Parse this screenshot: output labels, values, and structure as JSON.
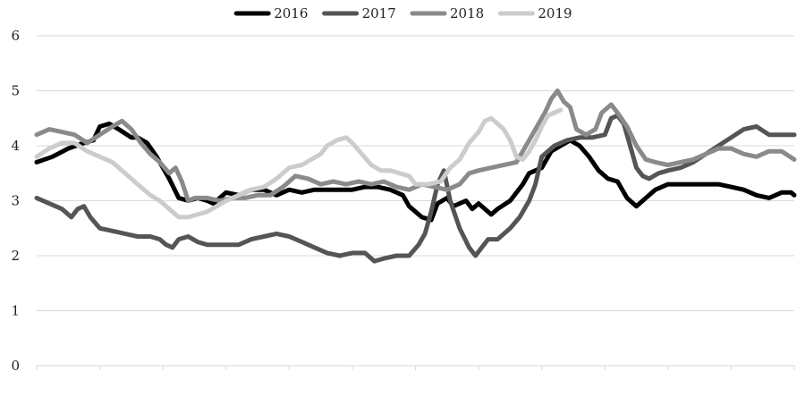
{
  "chart_data": {
    "type": "line",
    "title": "",
    "xlabel": "",
    "ylabel": "",
    "ylim": [
      0,
      6
    ],
    "yticks": [
      0,
      1,
      2,
      3,
      4,
      5,
      6
    ],
    "x_count": 12,
    "grid": "horizontal",
    "legend_position": "top",
    "series": [
      {
        "name": "2016",
        "color": "#000000",
        "points": [
          [
            0,
            3.7
          ],
          [
            0.25,
            3.8
          ],
          [
            0.5,
            3.95
          ],
          [
            0.75,
            4.05
          ],
          [
            0.9,
            4.1
          ],
          [
            1.0,
            4.35
          ],
          [
            1.15,
            4.4
          ],
          [
            1.3,
            4.3
          ],
          [
            1.5,
            4.15
          ],
          [
            1.6,
            4.15
          ],
          [
            1.75,
            4.05
          ],
          [
            1.9,
            3.8
          ],
          [
            2.1,
            3.4
          ],
          [
            2.25,
            3.05
          ],
          [
            2.4,
            3.0
          ],
          [
            2.55,
            3.05
          ],
          [
            2.7,
            3.0
          ],
          [
            2.8,
            2.95
          ],
          [
            2.9,
            3.05
          ],
          [
            3.0,
            3.15
          ],
          [
            3.2,
            3.1
          ],
          [
            3.4,
            3.2
          ],
          [
            3.6,
            3.2
          ],
          [
            3.8,
            3.1
          ],
          [
            4.0,
            3.2
          ],
          [
            4.2,
            3.15
          ],
          [
            4.4,
            3.2
          ],
          [
            4.6,
            3.2
          ],
          [
            4.8,
            3.2
          ],
          [
            5.0,
            3.2
          ],
          [
            5.2,
            3.25
          ],
          [
            5.4,
            3.25
          ],
          [
            5.6,
            3.2
          ],
          [
            5.8,
            3.1
          ],
          [
            5.9,
            2.9
          ],
          [
            6.1,
            2.7
          ],
          [
            6.25,
            2.65
          ],
          [
            6.35,
            2.95
          ],
          [
            6.5,
            3.05
          ],
          [
            6.6,
            2.9
          ],
          [
            6.8,
            3.0
          ],
          [
            6.9,
            2.85
          ],
          [
            7.0,
            2.95
          ],
          [
            7.2,
            2.75
          ],
          [
            7.3,
            2.85
          ],
          [
            7.5,
            3.0
          ],
          [
            7.7,
            3.3
          ],
          [
            7.8,
            3.5
          ],
          [
            8.0,
            3.6
          ],
          [
            8.15,
            3.9
          ],
          [
            8.3,
            4.0
          ],
          [
            8.45,
            4.1
          ],
          [
            8.6,
            4.0
          ],
          [
            8.75,
            3.8
          ],
          [
            8.9,
            3.55
          ],
          [
            9.05,
            3.4
          ],
          [
            9.2,
            3.35
          ],
          [
            9.35,
            3.05
          ],
          [
            9.5,
            2.9
          ],
          [
            9.65,
            3.05
          ],
          [
            9.8,
            3.2
          ],
          [
            10.0,
            3.3
          ],
          [
            10.2,
            3.3
          ],
          [
            10.4,
            3.3
          ],
          [
            10.6,
            3.3
          ],
          [
            10.8,
            3.3
          ],
          [
            11.0,
            3.25
          ],
          [
            11.2,
            3.2
          ],
          [
            11.4,
            3.1
          ],
          [
            11.6,
            3.05
          ],
          [
            11.8,
            3.15
          ],
          [
            11.95,
            3.15
          ],
          [
            12.0,
            3.1
          ]
        ]
      },
      {
        "name": "2017",
        "color": "#555555",
        "points": [
          [
            0,
            3.05
          ],
          [
            0.2,
            2.95
          ],
          [
            0.4,
            2.85
          ],
          [
            0.55,
            2.7
          ],
          [
            0.65,
            2.85
          ],
          [
            0.75,
            2.9
          ],
          [
            0.85,
            2.7
          ],
          [
            1.0,
            2.5
          ],
          [
            1.2,
            2.45
          ],
          [
            1.4,
            2.4
          ],
          [
            1.6,
            2.35
          ],
          [
            1.8,
            2.35
          ],
          [
            1.95,
            2.3
          ],
          [
            2.05,
            2.2
          ],
          [
            2.15,
            2.15
          ],
          [
            2.25,
            2.3
          ],
          [
            2.4,
            2.35
          ],
          [
            2.55,
            2.25
          ],
          [
            2.7,
            2.2
          ],
          [
            2.85,
            2.2
          ],
          [
            3.0,
            2.2
          ],
          [
            3.2,
            2.2
          ],
          [
            3.4,
            2.3
          ],
          [
            3.6,
            2.35
          ],
          [
            3.8,
            2.4
          ],
          [
            4.0,
            2.35
          ],
          [
            4.2,
            2.25
          ],
          [
            4.4,
            2.15
          ],
          [
            4.6,
            2.05
          ],
          [
            4.8,
            2.0
          ],
          [
            5.0,
            2.05
          ],
          [
            5.2,
            2.05
          ],
          [
            5.35,
            1.9
          ],
          [
            5.5,
            1.95
          ],
          [
            5.7,
            2.0
          ],
          [
            5.9,
            2.0
          ],
          [
            6.05,
            2.2
          ],
          [
            6.15,
            2.4
          ],
          [
            6.25,
            2.8
          ],
          [
            6.35,
            3.3
          ],
          [
            6.45,
            3.55
          ],
          [
            6.55,
            3.0
          ],
          [
            6.7,
            2.5
          ],
          [
            6.85,
            2.15
          ],
          [
            6.95,
            2.0
          ],
          [
            7.05,
            2.15
          ],
          [
            7.15,
            2.3
          ],
          [
            7.3,
            2.3
          ],
          [
            7.5,
            2.5
          ],
          [
            7.65,
            2.7
          ],
          [
            7.8,
            3.0
          ],
          [
            7.9,
            3.3
          ],
          [
            8.0,
            3.8
          ],
          [
            8.2,
            4.0
          ],
          [
            8.4,
            4.1
          ],
          [
            8.6,
            4.15
          ],
          [
            8.8,
            4.15
          ],
          [
            9.0,
            4.2
          ],
          [
            9.1,
            4.5
          ],
          [
            9.2,
            4.55
          ],
          [
            9.3,
            4.4
          ],
          [
            9.4,
            4.0
          ],
          [
            9.5,
            3.6
          ],
          [
            9.6,
            3.45
          ],
          [
            9.7,
            3.4
          ],
          [
            9.85,
            3.5
          ],
          [
            10.0,
            3.55
          ],
          [
            10.2,
            3.6
          ],
          [
            10.4,
            3.7
          ],
          [
            10.6,
            3.85
          ],
          [
            10.8,
            4.0
          ],
          [
            11.0,
            4.15
          ],
          [
            11.2,
            4.3
          ],
          [
            11.4,
            4.35
          ],
          [
            11.6,
            4.2
          ],
          [
            11.8,
            4.2
          ],
          [
            12.0,
            4.2
          ]
        ]
      },
      {
        "name": "2018",
        "color": "#8a8a8a",
        "points": [
          [
            0,
            4.2
          ],
          [
            0.2,
            4.3
          ],
          [
            0.4,
            4.25
          ],
          [
            0.6,
            4.2
          ],
          [
            0.8,
            4.05
          ],
          [
            1.0,
            4.2
          ],
          [
            1.2,
            4.35
          ],
          [
            1.35,
            4.45
          ],
          [
            1.5,
            4.3
          ],
          [
            1.65,
            4.05
          ],
          [
            1.8,
            3.85
          ],
          [
            1.95,
            3.7
          ],
          [
            2.1,
            3.5
          ],
          [
            2.2,
            3.6
          ],
          [
            2.3,
            3.35
          ],
          [
            2.4,
            3.0
          ],
          [
            2.5,
            3.05
          ],
          [
            2.7,
            3.05
          ],
          [
            2.9,
            3.0
          ],
          [
            3.1,
            3.05
          ],
          [
            3.3,
            3.05
          ],
          [
            3.5,
            3.1
          ],
          [
            3.7,
            3.1
          ],
          [
            3.9,
            3.25
          ],
          [
            4.1,
            3.45
          ],
          [
            4.3,
            3.4
          ],
          [
            4.5,
            3.3
          ],
          [
            4.7,
            3.35
          ],
          [
            4.9,
            3.3
          ],
          [
            5.1,
            3.35
          ],
          [
            5.3,
            3.3
          ],
          [
            5.5,
            3.35
          ],
          [
            5.7,
            3.25
          ],
          [
            5.9,
            3.2
          ],
          [
            6.1,
            3.3
          ],
          [
            6.3,
            3.25
          ],
          [
            6.5,
            3.2
          ],
          [
            6.7,
            3.3
          ],
          [
            6.85,
            3.5
          ],
          [
            7.0,
            3.55
          ],
          [
            7.2,
            3.6
          ],
          [
            7.4,
            3.65
          ],
          [
            7.6,
            3.7
          ],
          [
            7.8,
            4.1
          ],
          [
            7.95,
            4.4
          ],
          [
            8.05,
            4.6
          ],
          [
            8.15,
            4.85
          ],
          [
            8.25,
            5.0
          ],
          [
            8.35,
            4.8
          ],
          [
            8.45,
            4.7
          ],
          [
            8.55,
            4.3
          ],
          [
            8.7,
            4.2
          ],
          [
            8.85,
            4.3
          ],
          [
            8.95,
            4.6
          ],
          [
            9.1,
            4.75
          ],
          [
            9.2,
            4.6
          ],
          [
            9.35,
            4.35
          ],
          [
            9.5,
            4.0
          ],
          [
            9.65,
            3.75
          ],
          [
            9.8,
            3.7
          ],
          [
            10.0,
            3.65
          ],
          [
            10.2,
            3.7
          ],
          [
            10.4,
            3.75
          ],
          [
            10.6,
            3.85
          ],
          [
            10.8,
            3.95
          ],
          [
            11.0,
            3.95
          ],
          [
            11.2,
            3.85
          ],
          [
            11.4,
            3.8
          ],
          [
            11.6,
            3.9
          ],
          [
            11.8,
            3.9
          ],
          [
            12.0,
            3.75
          ]
        ]
      },
      {
        "name": "2019",
        "color": "#cccccc",
        "points": [
          [
            0,
            3.8
          ],
          [
            0.2,
            3.95
          ],
          [
            0.4,
            4.05
          ],
          [
            0.6,
            4.05
          ],
          [
            0.8,
            3.9
          ],
          [
            1.0,
            3.8
          ],
          [
            1.2,
            3.7
          ],
          [
            1.4,
            3.5
          ],
          [
            1.6,
            3.3
          ],
          [
            1.8,
            3.1
          ],
          [
            1.95,
            3.0
          ],
          [
            2.1,
            2.85
          ],
          [
            2.25,
            2.7
          ],
          [
            2.4,
            2.7
          ],
          [
            2.55,
            2.75
          ],
          [
            2.7,
            2.8
          ],
          [
            2.85,
            2.9
          ],
          [
            3.0,
            3.0
          ],
          [
            3.2,
            3.1
          ],
          [
            3.4,
            3.2
          ],
          [
            3.6,
            3.25
          ],
          [
            3.8,
            3.4
          ],
          [
            4.0,
            3.6
          ],
          [
            4.2,
            3.65
          ],
          [
            4.35,
            3.75
          ],
          [
            4.5,
            3.85
          ],
          [
            4.6,
            4.0
          ],
          [
            4.75,
            4.1
          ],
          [
            4.9,
            4.15
          ],
          [
            5.0,
            4.05
          ],
          [
            5.15,
            3.85
          ],
          [
            5.3,
            3.65
          ],
          [
            5.45,
            3.55
          ],
          [
            5.6,
            3.55
          ],
          [
            5.75,
            3.5
          ],
          [
            5.9,
            3.45
          ],
          [
            6.0,
            3.3
          ],
          [
            6.2,
            3.3
          ],
          [
            6.4,
            3.35
          ],
          [
            6.55,
            3.6
          ],
          [
            6.7,
            3.75
          ],
          [
            6.85,
            4.05
          ],
          [
            7.0,
            4.25
          ],
          [
            7.1,
            4.45
          ],
          [
            7.2,
            4.5
          ],
          [
            7.3,
            4.4
          ],
          [
            7.4,
            4.3
          ],
          [
            7.5,
            4.1
          ],
          [
            7.6,
            3.8
          ],
          [
            7.7,
            3.75
          ],
          [
            7.8,
            3.9
          ],
          [
            7.9,
            4.1
          ],
          [
            8.0,
            4.35
          ],
          [
            8.1,
            4.55
          ],
          [
            8.2,
            4.6
          ],
          [
            8.3,
            4.65
          ]
        ]
      }
    ]
  }
}
